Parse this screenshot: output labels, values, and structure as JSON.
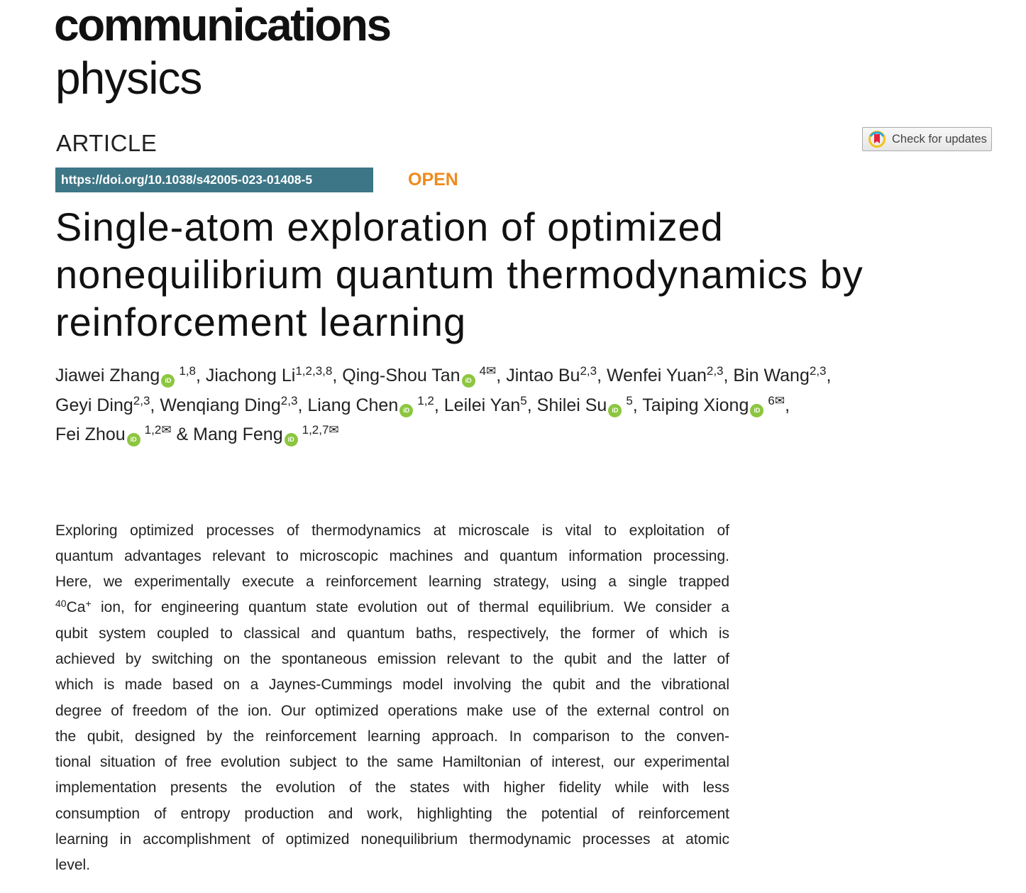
{
  "journal": {
    "name_line1": "communications",
    "name_line2": "physics"
  },
  "article_type": "ARTICLE",
  "check_updates": {
    "label": "Check for updates",
    "icon": "check-for-updates-icon"
  },
  "doi": "https://doi.org/10.1038/s42005-023-01408-5",
  "open_access": "OPEN",
  "title_lines": [
    "Single-atom exploration of optimized",
    "nonequilibrium quantum thermodynamics by",
    "reinforcement learning"
  ],
  "authors": [
    {
      "name": "Jiawei Zhang",
      "orcid": true,
      "aff": "1,8",
      "email": false,
      "sep": ", "
    },
    {
      "name": "Jiachong Li",
      "orcid": false,
      "aff": "1,2,3,8",
      "email": false,
      "sep": ", "
    },
    {
      "name": "Qing-Shou Tan",
      "orcid": true,
      "aff": "4",
      "email": true,
      "sep": ", "
    },
    {
      "name": "Jintao Bu",
      "orcid": false,
      "aff": "2,3",
      "email": false,
      "sep": ", "
    },
    {
      "name": "Wenfei Yuan",
      "orcid": false,
      "aff": "2,3",
      "email": false,
      "sep": ", "
    },
    {
      "name": "Bin Wang",
      "orcid": false,
      "aff": "2,3",
      "email": false,
      "sep": ","
    },
    {
      "name": "Geyi Ding",
      "orcid": false,
      "aff": "2,3",
      "email": false,
      "sep": ", "
    },
    {
      "name": "Wenqiang Ding",
      "orcid": false,
      "aff": "2,3",
      "email": false,
      "sep": ", "
    },
    {
      "name": "Liang Chen",
      "orcid": true,
      "aff": "1,2",
      "email": false,
      "sep": ", "
    },
    {
      "name": "Leilei Yan",
      "orcid": false,
      "aff": "5",
      "email": false,
      "sep": ", "
    },
    {
      "name": "Shilei Su",
      "orcid": true,
      "aff": "5",
      "email": false,
      "sep": ", "
    },
    {
      "name": "Taiping Xiong",
      "orcid": true,
      "aff": "6",
      "email": true,
      "sep": ","
    },
    {
      "name": "Fei Zhou",
      "orcid": true,
      "aff": "1,2",
      "email": true,
      "sep": " & "
    },
    {
      "name": "Mang Feng",
      "orcid": true,
      "aff": "1,2,7",
      "email": true,
      "sep": ""
    }
  ],
  "orcid_label": "iD",
  "email_symbol": "✉",
  "abstract": {
    "ion_mass": "40",
    "ion_symbol": "Ca",
    "ion_charge": "+",
    "lines": [
      "Exploring optimized processes of thermodynamics at microscale is vital to exploitation of",
      "quantum advantages relevant to microscopic machines and quantum information processing.",
      "Here, we experimentally execute a reinforcement learning strategy, using a single trapped",
      " ion, for engineering quantum state evolution out of thermal equilibrium. We consider a",
      "qubit system coupled to classical and quantum baths, respectively, the former of which is",
      "achieved by switching on the spontaneous emission relevant to the qubit and the latter of",
      "which is made based on a Jaynes-Cummings model involving the qubit and the vibrational",
      "degree of freedom of the ion. Our optimized operations make use of the external control on",
      "the qubit, designed by the reinforcement learning approach. In comparison to the conven-",
      "tional situation of free evolution subject to the same Hamiltonian of interest, our experimental",
      "implementation presents the evolution of the states with higher fidelity while with less",
      "consumption of entropy production and work, highlighting the potential of reinforcement",
      "learning in accomplishment of optimized nonequilibrium thermodynamic processes at atomic",
      "level."
    ]
  },
  "colors": {
    "doi_bg": "#3d7686",
    "open": "#f08a1c",
    "orcid": "#8cc63f"
  }
}
